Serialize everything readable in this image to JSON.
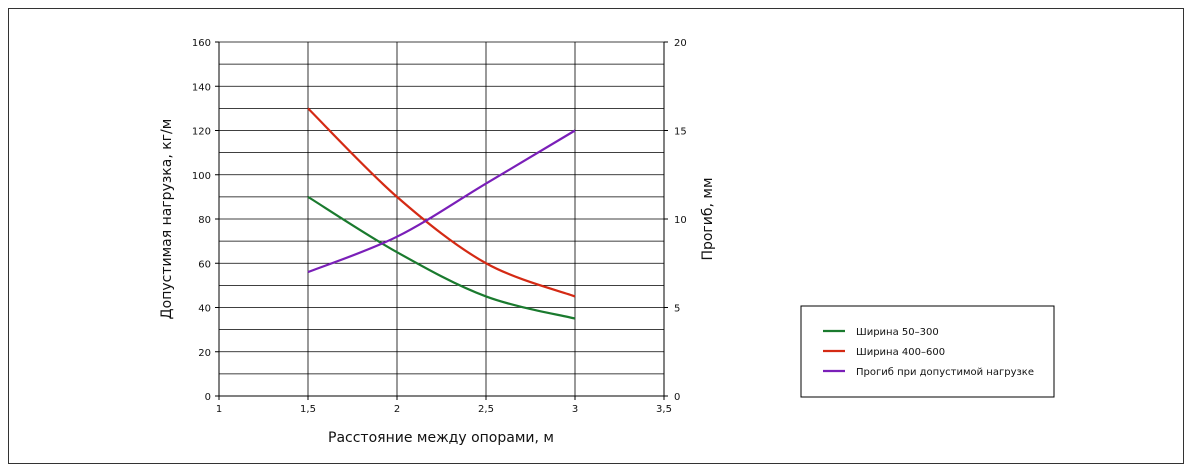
{
  "chart_data": {
    "type": "line",
    "xlabel": "Расстояние между опорами, м",
    "ylabel_left": "Допустимая нагрузка, кг/м",
    "ylabel_right": "Прогиб, мм",
    "xlim": [
      1,
      3.5
    ],
    "ylim_left": [
      0,
      160
    ],
    "ylim_right": [
      0,
      20
    ],
    "x_ticks": [
      "1",
      "1,5",
      "2",
      "2,5",
      "3",
      "3,5"
    ],
    "x_tick_values": [
      1,
      1.5,
      2,
      2.5,
      3,
      3.5
    ],
    "y_left_ticks": [
      "0",
      "20",
      "40",
      "60",
      "80",
      "100",
      "120",
      "140",
      "160"
    ],
    "y_left_tick_values": [
      0,
      20,
      40,
      60,
      80,
      100,
      120,
      140,
      160
    ],
    "y_right_ticks": [
      "0",
      "5",
      "10",
      "15",
      "20"
    ],
    "y_right_tick_values": [
      0,
      5,
      10,
      15,
      20
    ],
    "grid": true,
    "legend_position": "right",
    "series": [
      {
        "name": "Ширина 50–300",
        "axis": "left",
        "color": "#1a7a2e",
        "x": [
          1.5,
          2,
          2.5,
          3
        ],
        "values": [
          90,
          65,
          45,
          35
        ]
      },
      {
        "name": "Ширина 400–600",
        "axis": "left",
        "color": "#d42a14",
        "x": [
          1.5,
          2,
          2.5,
          3
        ],
        "values": [
          130,
          90,
          60,
          45
        ]
      },
      {
        "name": "Прогиб при допустимой нагрузке",
        "axis": "right",
        "color": "#7a1fb8",
        "x": [
          1.5,
          2,
          2.5,
          3
        ],
        "values": [
          7,
          9,
          12,
          15
        ]
      }
    ]
  }
}
